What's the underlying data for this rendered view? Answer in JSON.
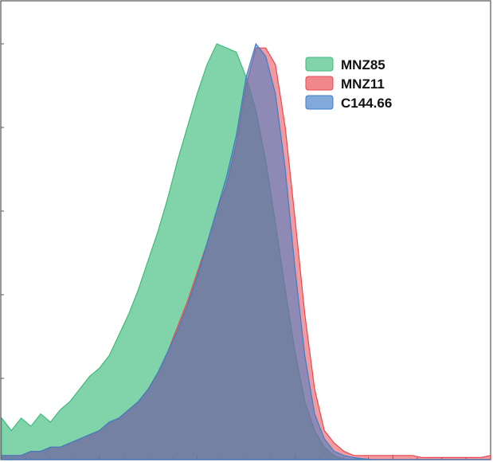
{
  "chart_data": {
    "type": "area",
    "title": "",
    "xlabel": "",
    "ylabel": "",
    "xlim": [
      0,
      1
    ],
    "ylim": [
      0,
      1
    ],
    "legend_position": "top-right",
    "x": [
      0.0,
      0.02,
      0.04,
      0.06,
      0.08,
      0.1,
      0.12,
      0.14,
      0.16,
      0.18,
      0.2,
      0.22,
      0.24,
      0.26,
      0.28,
      0.3,
      0.32,
      0.34,
      0.36,
      0.38,
      0.4,
      0.42,
      0.44,
      0.46,
      0.48,
      0.5,
      0.52,
      0.54,
      0.56,
      0.58,
      0.6,
      0.62,
      0.64,
      0.66,
      0.68,
      0.7,
      0.72,
      0.74,
      0.76,
      0.78,
      0.8,
      0.82,
      0.84,
      0.86,
      0.88,
      0.9,
      0.92,
      0.94,
      0.96,
      0.98,
      1.0
    ],
    "series": [
      {
        "name": "MNZ85",
        "color": "#3dbb7b",
        "values": [
          0.1,
          0.07,
          0.1,
          0.08,
          0.11,
          0.09,
          0.12,
          0.14,
          0.17,
          0.2,
          0.22,
          0.25,
          0.3,
          0.35,
          0.41,
          0.48,
          0.55,
          0.63,
          0.72,
          0.8,
          0.88,
          0.95,
          1.0,
          0.99,
          0.98,
          0.92,
          0.84,
          0.72,
          0.57,
          0.41,
          0.26,
          0.14,
          0.07,
          0.03,
          0.01,
          0,
          0,
          0,
          0,
          0,
          0,
          0,
          0,
          0,
          0,
          0,
          0,
          0,
          0,
          0,
          0
        ]
      },
      {
        "name": "MNZ11",
        "color": "#e8474f",
        "values": [
          0.01,
          0.01,
          0.01,
          0.02,
          0.02,
          0.03,
          0.03,
          0.04,
          0.05,
          0.06,
          0.07,
          0.09,
          0.1,
          0.12,
          0.14,
          0.17,
          0.21,
          0.26,
          0.32,
          0.38,
          0.45,
          0.52,
          0.6,
          0.66,
          0.76,
          0.9,
          0.99,
          0.99,
          0.95,
          0.8,
          0.58,
          0.35,
          0.17,
          0.07,
          0.04,
          0.02,
          0.01,
          0.01,
          0.01,
          0.01,
          0.01,
          0.01,
          0.01,
          0.005,
          0.005,
          0.005,
          0.005,
          0.005,
          0.005,
          0.005,
          0.01
        ]
      },
      {
        "name": "C144.66",
        "color": "#3d7dc8",
        "values": [
          0.01,
          0.01,
          0.01,
          0.02,
          0.02,
          0.03,
          0.03,
          0.04,
          0.05,
          0.06,
          0.07,
          0.09,
          0.1,
          0.12,
          0.14,
          0.17,
          0.21,
          0.26,
          0.31,
          0.37,
          0.44,
          0.52,
          0.6,
          0.68,
          0.78,
          0.92,
          1.0,
          0.97,
          0.88,
          0.7,
          0.46,
          0.25,
          0.11,
          0.05,
          0.02,
          0.01,
          0.005,
          0.002,
          0,
          0,
          0,
          0,
          0,
          0,
          0,
          0,
          0,
          0,
          0,
          0,
          0
        ]
      }
    ]
  }
}
